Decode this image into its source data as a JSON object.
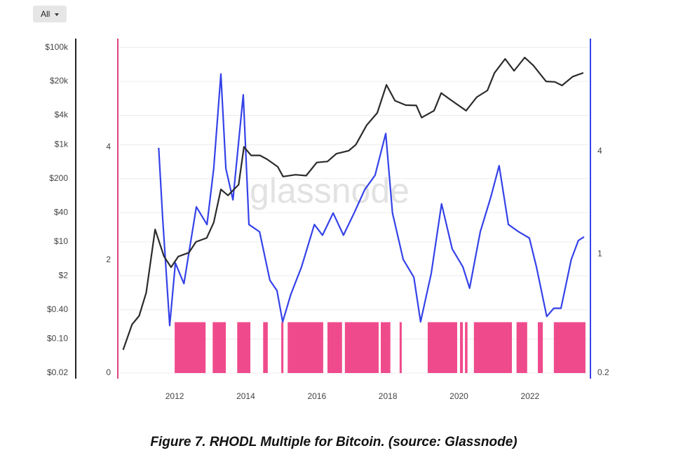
{
  "dropdown": {
    "label": "All"
  },
  "chart_data": {
    "type": "line",
    "watermark": "glassnode",
    "xlim": [
      2010.4,
      2023.66
    ],
    "xticks": [
      2012,
      2014,
      2016,
      2018,
      2020,
      2022
    ],
    "ylim": [
      0.02,
      152000
    ],
    "log_scale_y": true,
    "yticks": [
      {
        "value": 0.02,
        "label": "$0.02"
      },
      {
        "value": 0.1,
        "label": "$0.10"
      },
      {
        "value": 0.4,
        "label": "$0.40"
      },
      {
        "value": 2,
        "label": "$2"
      },
      {
        "value": 10,
        "label": "$10"
      },
      {
        "value": 40,
        "label": "$40"
      },
      {
        "value": 200,
        "label": "$200"
      },
      {
        "value": 1000,
        "label": "$1k"
      },
      {
        "value": 4000,
        "label": "$4k"
      },
      {
        "value": 20000,
        "label": "$20k"
      },
      {
        "value": 100000,
        "label": "$100k"
      }
    ],
    "y2lim": [
      0.2,
      18.4
    ],
    "log_scale_y2": true,
    "y2ticks": [
      0.2,
      1,
      4
    ],
    "y3lim": [
      0,
      5.92
    ],
    "y3ticks": [
      0,
      2,
      4
    ],
    "grid": true,
    "series": [
      {
        "color": "#2b2b2b",
        "x": [
          2010.55,
          2010.8,
          2011.0,
          2011.2,
          2011.45,
          2011.7,
          2011.9,
          2012.1,
          2012.4,
          2012.6,
          2012.9,
          2013.1,
          2013.3,
          2013.5,
          2013.8,
          2013.95,
          2014.15,
          2014.4,
          2014.6,
          2014.9,
          2015.05,
          2015.4,
          2015.7,
          2016.0,
          2016.3,
          2016.55,
          2016.9,
          2017.1,
          2017.4,
          2017.7,
          2017.96,
          2018.2,
          2018.5,
          2018.8,
          2018.95,
          2019.3,
          2019.5,
          2019.8,
          2020.2,
          2020.5,
          2020.8,
          2021.0,
          2021.3,
          2021.55,
          2021.85,
          2022.1,
          2022.45,
          2022.7,
          2022.9,
          2023.2,
          2023.5
        ],
        "values": [
          0.06,
          0.2,
          0.3,
          0.9,
          18,
          5,
          3,
          5,
          6,
          10,
          12,
          25,
          120,
          90,
          150,
          900,
          600,
          600,
          500,
          350,
          220,
          240,
          230,
          430,
          450,
          650,
          750,
          1000,
          2500,
          4500,
          17000,
          8000,
          6500,
          6400,
          3600,
          5000,
          11500,
          8000,
          5000,
          9500,
          13000,
          30000,
          58000,
          33000,
          62000,
          42000,
          20000,
          19500,
          16500,
          25000,
          30000
        ]
      },
      {
        "color": "#3442e8",
        "axis": "y2",
        "x": [
          2011.55,
          2011.66,
          2011.86,
          2012.02,
          2012.26,
          2012.61,
          2012.91,
          2013.1,
          2013.3,
          2013.44,
          2013.64,
          2013.93,
          2014.09,
          2014.39,
          2014.68,
          2014.88,
          2015.04,
          2015.27,
          2015.57,
          2015.93,
          2016.16,
          2016.46,
          2016.75,
          2017.05,
          2017.35,
          2017.64,
          2017.94,
          2018.13,
          2018.43,
          2018.73,
          2018.92,
          2019.22,
          2019.51,
          2019.81,
          2020.11,
          2020.3,
          2020.6,
          2020.9,
          2021.13,
          2021.39,
          2021.68,
          2021.98,
          2022.18,
          2022.47,
          2022.67,
          2022.87,
          2023.16,
          2023.36,
          2023.52
        ],
        "values": [
          4.2,
          1.64,
          0.38,
          0.885,
          0.67,
          1.89,
          1.49,
          3.18,
          11.4,
          3.18,
          2.08,
          8.6,
          1.49,
          1.35,
          0.7,
          0.61,
          0.4,
          0.58,
          0.84,
          1.49,
          1.29,
          1.74,
          1.29,
          1.74,
          2.39,
          2.9,
          5.1,
          1.74,
          0.93,
          0.73,
          0.4,
          0.77,
          1.97,
          1.07,
          0.84,
          0.63,
          1.35,
          2.17,
          3.3,
          1.49,
          1.35,
          1.24,
          0.84,
          0.43,
          0.48,
          0.48,
          0.93,
          1.2,
          1.26
        ]
      },
      {
        "type": "bar",
        "color": "#ef4b8c",
        "axis": "y3",
        "x_spans": [
          [
            2012.0,
            2012.87
          ],
          [
            2013.07,
            2013.44
          ],
          [
            2013.76,
            2014.13
          ],
          [
            2014.49,
            2014.62
          ],
          [
            2015.0,
            2015.06
          ],
          [
            2015.18,
            2016.18
          ],
          [
            2016.3,
            2016.71
          ],
          [
            2016.79,
            2017.74
          ],
          [
            2017.8,
            2018.07
          ],
          [
            2018.33,
            2018.39
          ],
          [
            2019.12,
            2019.95
          ],
          [
            2020.03,
            2020.11
          ],
          [
            2020.17,
            2020.24
          ],
          [
            2020.42,
            2021.49
          ],
          [
            2021.62,
            2021.92
          ],
          [
            2022.22,
            2022.36
          ],
          [
            2022.67,
            2023.56
          ]
        ],
        "values": [
          0.9,
          0.9,
          0.9,
          0.9,
          0.9,
          0.9,
          0.9,
          0.9,
          0.9,
          0.9,
          0.9,
          0.9,
          0.9,
          0.9,
          0.9,
          0.9,
          0.9
        ]
      }
    ]
  },
  "caption": "Figure 7.  RHODL Multiple for Bitcoin. (source: Glassnode)"
}
